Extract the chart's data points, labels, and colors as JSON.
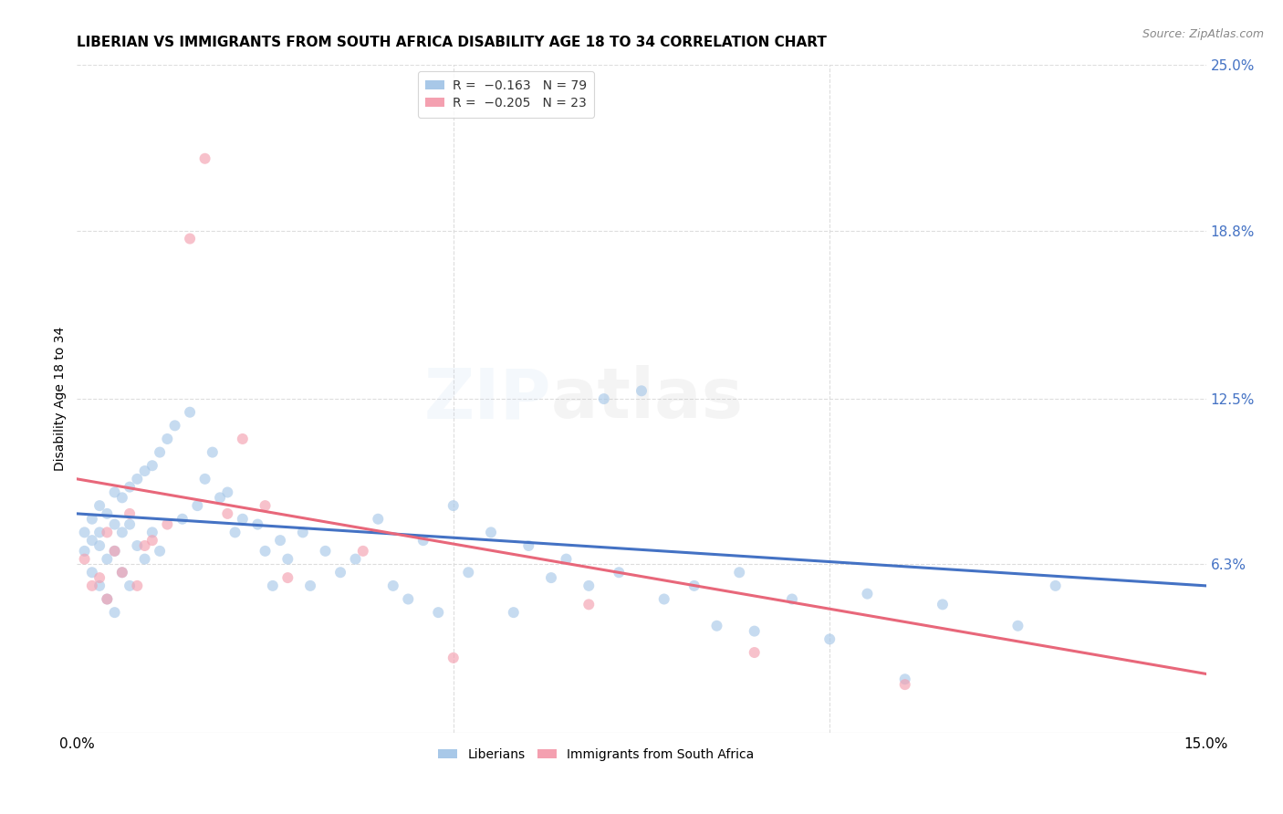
{
  "title": "LIBERIAN VS IMMIGRANTS FROM SOUTH AFRICA DISABILITY AGE 18 TO 34 CORRELATION CHART",
  "source": "Source: ZipAtlas.com",
  "ylabel": "Disability Age 18 to 34",
  "xlim": [
    0.0,
    0.15
  ],
  "ylim": [
    0.0,
    0.25
  ],
  "y_tick_labels_right": [
    "25.0%",
    "18.8%",
    "12.5%",
    "6.3%"
  ],
  "y_tick_positions_right": [
    0.25,
    0.188,
    0.125,
    0.063
  ],
  "blue_scatter_x": [
    0.001,
    0.001,
    0.002,
    0.002,
    0.002,
    0.003,
    0.003,
    0.003,
    0.003,
    0.004,
    0.004,
    0.004,
    0.005,
    0.005,
    0.005,
    0.005,
    0.006,
    0.006,
    0.006,
    0.007,
    0.007,
    0.007,
    0.008,
    0.008,
    0.009,
    0.009,
    0.01,
    0.01,
    0.011,
    0.011,
    0.012,
    0.013,
    0.014,
    0.015,
    0.016,
    0.017,
    0.018,
    0.019,
    0.02,
    0.021,
    0.022,
    0.024,
    0.025,
    0.026,
    0.027,
    0.028,
    0.03,
    0.031,
    0.033,
    0.035,
    0.037,
    0.04,
    0.042,
    0.044,
    0.046,
    0.048,
    0.05,
    0.052,
    0.055,
    0.058,
    0.06,
    0.063,
    0.065,
    0.068,
    0.07,
    0.072,
    0.075,
    0.078,
    0.082,
    0.085,
    0.088,
    0.09,
    0.095,
    0.1,
    0.105,
    0.11,
    0.115,
    0.125,
    0.13
  ],
  "blue_scatter_y": [
    0.075,
    0.068,
    0.08,
    0.072,
    0.06,
    0.085,
    0.075,
    0.07,
    0.055,
    0.082,
    0.065,
    0.05,
    0.09,
    0.078,
    0.068,
    0.045,
    0.088,
    0.075,
    0.06,
    0.092,
    0.078,
    0.055,
    0.095,
    0.07,
    0.098,
    0.065,
    0.1,
    0.075,
    0.105,
    0.068,
    0.11,
    0.115,
    0.08,
    0.12,
    0.085,
    0.095,
    0.105,
    0.088,
    0.09,
    0.075,
    0.08,
    0.078,
    0.068,
    0.055,
    0.072,
    0.065,
    0.075,
    0.055,
    0.068,
    0.06,
    0.065,
    0.08,
    0.055,
    0.05,
    0.072,
    0.045,
    0.085,
    0.06,
    0.075,
    0.045,
    0.07,
    0.058,
    0.065,
    0.055,
    0.125,
    0.06,
    0.128,
    0.05,
    0.055,
    0.04,
    0.06,
    0.038,
    0.05,
    0.035,
    0.052,
    0.02,
    0.048,
    0.04,
    0.055
  ],
  "pink_scatter_x": [
    0.001,
    0.002,
    0.003,
    0.004,
    0.004,
    0.005,
    0.006,
    0.007,
    0.008,
    0.009,
    0.01,
    0.012,
    0.015,
    0.017,
    0.02,
    0.022,
    0.025,
    0.028,
    0.038,
    0.05,
    0.068,
    0.09,
    0.11
  ],
  "pink_scatter_y": [
    0.065,
    0.055,
    0.058,
    0.075,
    0.05,
    0.068,
    0.06,
    0.082,
    0.055,
    0.07,
    0.072,
    0.078,
    0.185,
    0.215,
    0.082,
    0.11,
    0.085,
    0.058,
    0.068,
    0.028,
    0.048,
    0.03,
    0.018
  ],
  "blue_line_x": [
    0.0,
    0.15
  ],
  "blue_line_y": [
    0.082,
    0.055
  ],
  "pink_line_x": [
    0.0,
    0.15
  ],
  "pink_line_y": [
    0.095,
    0.022
  ],
  "scatter_alpha": 0.65,
  "scatter_size": 75,
  "line_width": 2.2,
  "blue_color": "#a8c8e8",
  "blue_line_color": "#4472c4",
  "pink_color": "#f4a0b0",
  "pink_line_color": "#e8677a",
  "background_color": "#ffffff",
  "grid_color": "#dddddd",
  "title_fontsize": 11,
  "axis_fontsize": 11,
  "watermark_zip": "ZIP",
  "watermark_atlas": "atlas",
  "watermark_alpha": 0.13,
  "watermark_fontsize": 55
}
